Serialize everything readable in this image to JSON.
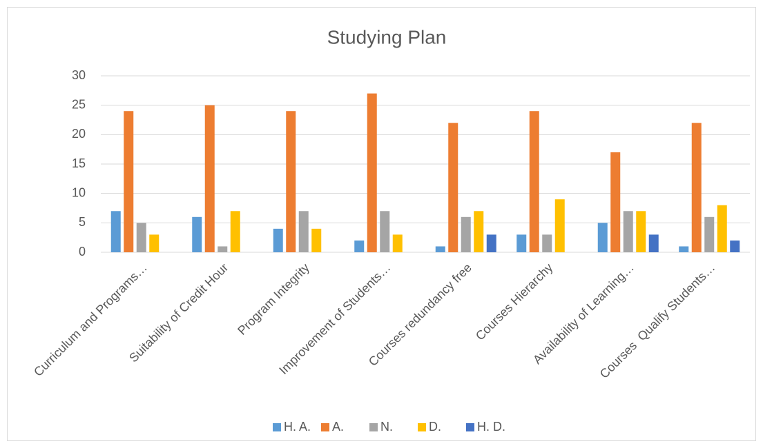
{
  "chart_data": {
    "type": "bar",
    "title": "Studying Plan",
    "categories": [
      "Curriculum and Programs…",
      "Suitability of Credit Hour",
      "Program Integrity",
      "Improvement of Students…",
      "Courses redundancy free",
      "Courses Hierarchy",
      "Availability of Learning…",
      "Courses  Qualify Students…"
    ],
    "series": [
      {
        "name": "H. A.",
        "color": "#5b9bd5",
        "values": [
          7,
          6,
          4,
          2,
          1,
          3,
          5,
          1
        ]
      },
      {
        "name": "A.",
        "color": "#ed7d31",
        "values": [
          24,
          25,
          24,
          27,
          22,
          24,
          17,
          22
        ]
      },
      {
        "name": "N.",
        "color": "#a5a5a5",
        "values": [
          5,
          1,
          7,
          7,
          6,
          3,
          7,
          6
        ]
      },
      {
        "name": "D.",
        "color": "#ffc000",
        "values": [
          3,
          7,
          4,
          3,
          7,
          9,
          7,
          8
        ]
      },
      {
        "name": "H. D.",
        "color": "#4472c4",
        "values": [
          0,
          0,
          0,
          0,
          3,
          0,
          3,
          2
        ]
      }
    ],
    "ylim": [
      0,
      30
    ],
    "yticks": [
      0,
      5,
      10,
      15,
      20,
      25,
      30
    ],
    "grid": true,
    "legend": "bottom"
  }
}
